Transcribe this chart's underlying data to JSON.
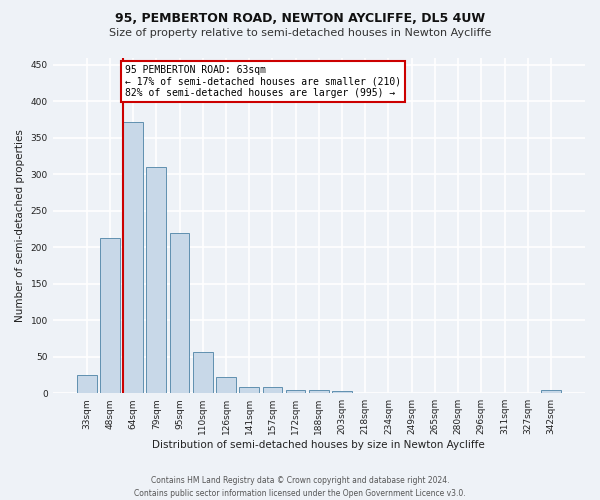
{
  "title": "95, PEMBERTON ROAD, NEWTON AYCLIFFE, DL5 4UW",
  "subtitle": "Size of property relative to semi-detached houses in Newton Aycliffe",
  "xlabel": "Distribution of semi-detached houses by size in Newton Aycliffe",
  "ylabel": "Number of semi-detached properties",
  "categories": [
    "33sqm",
    "48sqm",
    "64sqm",
    "79sqm",
    "95sqm",
    "110sqm",
    "126sqm",
    "141sqm",
    "157sqm",
    "172sqm",
    "188sqm",
    "203sqm",
    "218sqm",
    "234sqm",
    "249sqm",
    "265sqm",
    "280sqm",
    "296sqm",
    "311sqm",
    "327sqm",
    "342sqm"
  ],
  "values": [
    25,
    212,
    372,
    310,
    220,
    57,
    22,
    9,
    8,
    5,
    4,
    3,
    0,
    0,
    0,
    0,
    0,
    0,
    0,
    0,
    5
  ],
  "bar_color": "#c8d8e8",
  "bar_edge_color": "#6090b0",
  "vline_color": "#cc0000",
  "annotation_text": "95 PEMBERTON ROAD: 63sqm\n← 17% of semi-detached houses are smaller (210)\n82% of semi-detached houses are larger (995) →",
  "annotation_box_color": "#ffffff",
  "annotation_box_edge": "#cc0000",
  "footer": "Contains HM Land Registry data © Crown copyright and database right 2024.\nContains public sector information licensed under the Open Government Licence v3.0.",
  "ylim": [
    0,
    460
  ],
  "yticks": [
    0,
    50,
    100,
    150,
    200,
    250,
    300,
    350,
    400,
    450
  ],
  "background_color": "#eef2f7",
  "grid_color": "#ffffff",
  "title_fontsize": 9,
  "subtitle_fontsize": 8,
  "tick_fontsize": 6.5,
  "axis_label_fontsize": 7.5,
  "footer_fontsize": 5.5,
  "annotation_fontsize": 7
}
